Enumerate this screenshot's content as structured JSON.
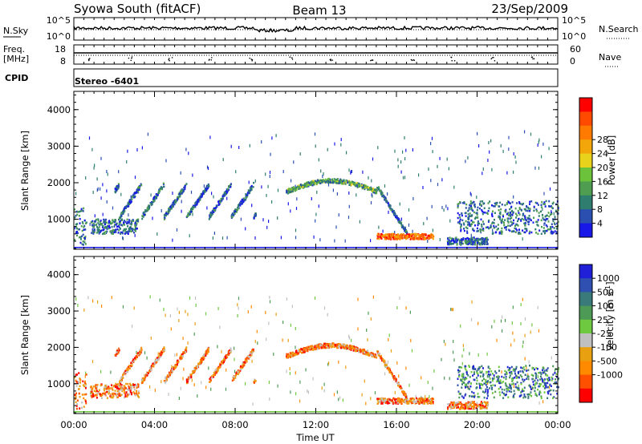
{
  "header": {
    "station": "Syowa South (fitACF)",
    "beam": "Beam 13",
    "date": "23/Sep/2009"
  },
  "strip_nsky": {
    "left_label": "N.Sky",
    "right_label": "N.Search",
    "left_ticks": [
      "10^5",
      "10^0"
    ],
    "right_ticks": [
      "10^5",
      "10^0"
    ]
  },
  "strip_freq": {
    "left_label_1": "Freq.",
    "left_label_2": "[MHz]",
    "right_label": "Nave",
    "left_ticks": [
      "18",
      "8"
    ],
    "right_ticks": [
      "60",
      "0"
    ]
  },
  "cpid": {
    "label": "CPID",
    "value": "Stereo -6401"
  },
  "chart_data": [
    {
      "type": "heatmap",
      "name": "power",
      "ylabel": "Slant Range [km]",
      "ylim": [
        180,
        4500
      ],
      "yticks": [
        1000,
        2000,
        3000,
        4000
      ],
      "xlim": [
        0,
        24
      ],
      "colorbar": {
        "label": "Power [dB]",
        "ticks": [
          "4",
          "8",
          "12",
          "16",
          "20",
          "24",
          "28"
        ],
        "colors": [
          "#1818e8",
          "#2a4fb0",
          "#2f7d6e",
          "#4e9d50",
          "#6cc23a",
          "#e8d21c",
          "#f2a60a",
          "#ff7a00",
          "#ff4a00",
          "#ff0000"
        ]
      },
      "features": [
        {
          "t0": 0.0,
          "t1": 0.6,
          "r0": 300,
          "r1": 1300
        },
        {
          "t0": 0.8,
          "t1": 3.2,
          "r0": 600,
          "r1": 1000
        },
        {
          "t0": 2.0,
          "t1": 9.0,
          "r0": 1000,
          "r1": 2000
        },
        {
          "t0": 10.5,
          "t1": 15.0,
          "r0": 1700,
          "r1": 2100
        },
        {
          "t0": 15.0,
          "t1": 16.5,
          "r0": 500,
          "r1": 1900
        },
        {
          "t0": 15.0,
          "t1": 17.8,
          "r0": 450,
          "r1": 600
        },
        {
          "t0": 18.5,
          "t1": 20.5,
          "r0": 300,
          "r1": 500
        },
        {
          "t0": 19.0,
          "t1": 24.0,
          "r0": 600,
          "r1": 1500
        }
      ]
    },
    {
      "type": "heatmap",
      "name": "velocity",
      "ylabel": "Slant Range [km]",
      "ylim": [
        180,
        4500
      ],
      "yticks": [
        1000,
        2000,
        3000,
        4000
      ],
      "xlim": [
        0,
        24
      ],
      "xticks": [
        "00:00",
        "04:00",
        "08:00",
        "12:00",
        "16:00",
        "20:00",
        "00:00"
      ],
      "xlabel": "Time UT",
      "colorbar": {
        "label": "Velocity  [m s",
        "label_sup": "-1",
        "label_end": "]",
        "ticks": [
          "1000",
          "500",
          "100",
          "25",
          "-25",
          "-100",
          "-500",
          "-1000"
        ],
        "colors": [
          "#2020d8",
          "#2f50b0",
          "#3a7a7a",
          "#4c9a55",
          "#6ec840",
          "#c0c0c0",
          "#e8a010",
          "#ff8a00",
          "#ff5000",
          "#ff0000"
        ]
      }
    }
  ]
}
